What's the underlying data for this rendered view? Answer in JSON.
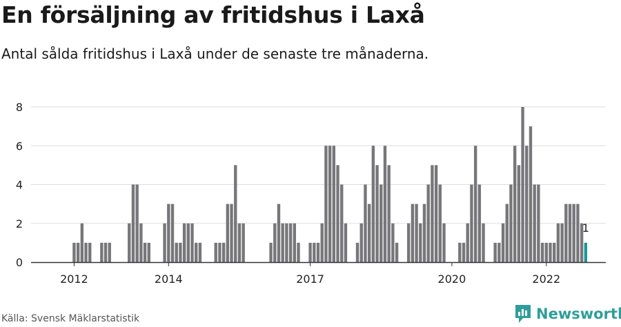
{
  "title": "En försäljning av fritidshus i Laxå",
  "subtitle": "Antal sålda fritidshus i Laxå under de senaste tre månaderna.",
  "source": "Källa: Svensk Mäklarstatistik",
  "brand": {
    "name": "Newsworthy",
    "icon": "newsworthy-logo-icon",
    "color": "#2f9e9a"
  },
  "colors": {
    "bar": "#77777b",
    "highlight": "#1a9a96",
    "grid": "#dddddd",
    "axis": "#333333"
  },
  "chart_data": {
    "type": "bar",
    "ylim": [
      0,
      8
    ],
    "yticks": [
      0,
      2,
      4,
      6,
      8
    ],
    "xticks": [
      "2012",
      "2014",
      "2017",
      "2020",
      "2022"
    ],
    "grid": true,
    "highlight_label": "1",
    "values": [
      0,
      0,
      0,
      0,
      0,
      0,
      0,
      0,
      1,
      1,
      2,
      1,
      1,
      0,
      0,
      1,
      1,
      1,
      0,
      0,
      0,
      0,
      2,
      4,
      4,
      2,
      1,
      1,
      0,
      0,
      0,
      2,
      3,
      3,
      1,
      1,
      2,
      2,
      2,
      1,
      1,
      0,
      0,
      0,
      1,
      1,
      1,
      3,
      3,
      5,
      2,
      2,
      0,
      0,
      0,
      0,
      0,
      0,
      1,
      2,
      3,
      2,
      2,
      2,
      2,
      1,
      0,
      0,
      1,
      1,
      1,
      2,
      6,
      6,
      6,
      5,
      4,
      2,
      0,
      0,
      1,
      2,
      4,
      3,
      6,
      5,
      4,
      6,
      5,
      2,
      1,
      0,
      0,
      2,
      3,
      3,
      2,
      3,
      4,
      5,
      5,
      4,
      2,
      0,
      0,
      0,
      1,
      1,
      2,
      4,
      6,
      4,
      2,
      0,
      0,
      1,
      1,
      2,
      3,
      4,
      6,
      5,
      8,
      6,
      7,
      4,
      4,
      1,
      1,
      1,
      1,
      2,
      2,
      3,
      3,
      3,
      3,
      2,
      1
    ]
  }
}
